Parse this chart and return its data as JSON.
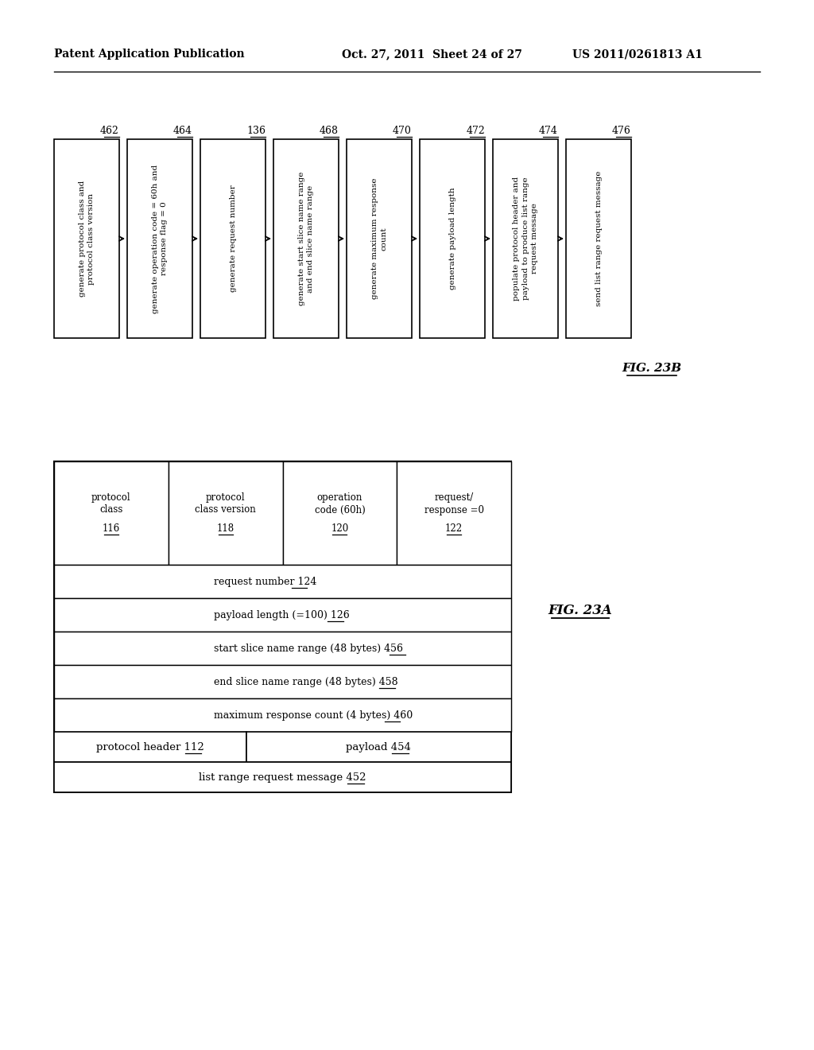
{
  "header_text_left": "Patent Application Publication",
  "header_text_mid": "Oct. 27, 2011  Sheet 24 of 27",
  "header_text_right": "US 2011/0261813 A1",
  "fig23b_label": "FIG. 23B",
  "fig23a_label": "FIG. 23A",
  "flowchart_boxes": [
    {
      "id": "462",
      "text": "generate protocol class and\nprotocol class version"
    },
    {
      "id": "464",
      "text": "generate operation code = 60h and\nresponse flag = 0"
    },
    {
      "id": "136",
      "text": "generate request number"
    },
    {
      "id": "468",
      "text": "generate start slice name range\nand end slice name range"
    },
    {
      "id": "470",
      "text": "generate maximum response\ncount"
    },
    {
      "id": "472",
      "text": "generate payload length"
    },
    {
      "id": "474",
      "text": "populate protocol header and\npayload to produce list range\nrequest message"
    },
    {
      "id": "476",
      "text": "send list range request message"
    }
  ],
  "table_title": "list range request message",
  "table_title_num": "452",
  "table_header_left": "protocol header",
  "table_header_left_num": "112",
  "table_header_right": "payload",
  "table_header_right_num": "454",
  "header_cols": [
    {
      "text": "protocol\nclass",
      "num": "116"
    },
    {
      "text": "protocol\nclass version",
      "num": "118"
    },
    {
      "text": "operation\ncode (60h)",
      "num": "120"
    },
    {
      "text": "request/\nresponse =0",
      "num": "122"
    }
  ],
  "payload_rows": [
    {
      "text": "request number",
      "num": "124"
    },
    {
      "text": "payload length (=100)",
      "num": "126"
    },
    {
      "text": "start slice name range (48 bytes)",
      "num": "456"
    },
    {
      "text": "end slice name range (48 bytes)",
      "num": "458"
    },
    {
      "text": "maximum response count (4 bytes)",
      "num": "460"
    }
  ]
}
